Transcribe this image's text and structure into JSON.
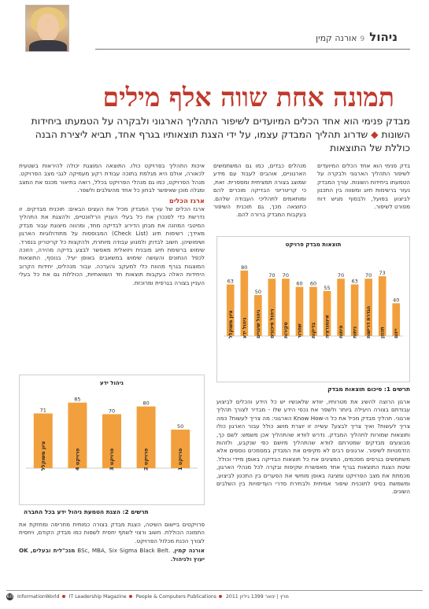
{
  "header": {
    "column_name": "ניהול",
    "column_number": "9",
    "author": "אורנה קמין"
  },
  "title": "תמונה אחת שווה אלף מילים",
  "lead": {
    "part1": "מבדק פנימי הוא אחד הכלים המיועדים לשיפור התהליך הארגוני ולבקרה על הטמעתו ביחידות השונות",
    "bullet": "◆",
    "part2": "שדרוג תהליך המבדק עצמו, על ידי הצגת תוצאותיו בגרף אחד, תביא ליצירת הבנה כוללת של התוצאות"
  },
  "text": {
    "top_right": "בדק פנימי הוא אחד הכלים המיועדים לשיפור התהליך הארגוני ולבקרה על הטמעתו ביחידות השונות. עורך המבדק נעזר ברשימות תיוג ומשווה בין התכנון לביצוע בפועל, ולבסוף מגיש דוח מפורט לשיפור.",
    "top_middle": "מנהלים כבדים, כמו גם המשתמשים הארגוניים, אוהבים לעבוד עם מידע שמוצג בצורה תמציתית ומספרית. זאת, כי קריטריוני הבדיקה מוכרים להם ומותאמים לתהליכי העבודה שלהם. כתוצאה מכך, גם תוכנית השיפור בעקבות המבדק ברורה להם.",
    "left_top": "איכות התהליך בפרויקט כולו. התוצאה המוצגת יכולה להיראות בשטעית לכאורה, אולם היא מגלמת בתוכה עבודת רקע מעמיקה לגבי מצב הפרויקט. מנהל הפרויקט, כמו גם מנהלי הפרויקט בכלל, רואה בתיאור מכנס את המצב ומגלה מוכן שאיפשר לבחון כל אחד מהשלבים ולשפר.",
    "left_heading": "ארגז הכלים",
    "left_body": "ארגז הכלים של עורך המבדק מכיל את העצים הבאים: תוכנית מבדקים. זו נדרשת כדי לסנכרן את כל בעלי העניין הרלוונטיים, ולהצגת את התהליך המיטבי המוזנה את מבחן הדירוג לבדיקה מחד, ומהווה מיצוגת עבור מבדק מאידך; רשימות תיוג (Check List) המבוססות על מתודולוגיות הארגון ושימושיהן. חשוב לבדוק ולמנוע עבודה מיותרת, ולהקצות כל קריטריון בנפרד. שימוש ברשימת תיוג מובנית ויזואלית מאפשר לבצע בדיקה מהירה, הזוכה לכפל הנתונים והעושה שימוש במשאבים באופן יעיל. בנוסף, התוצאות המוצגות בגרף מהוות כלי למעקב והערכה. עבור מנהלים, יחידות הקרוב היחידות האלה בעקבות תוצאות חד השוואתיות, הכוללות גם את כל בעלי העניין בצורה בגרפית ומרוכזת.",
    "right_body": "ארגון הרוצה להשיג את מטרותיו, יוודא שלאנשיו יש כל הידע והכלים לביצוע עבודתם בצורה היעילה ביותר ולשפר את נכסי הידע שלו - מבדיר לצורך תהליך ארגוני. תהליך מבדק מכיל את כל ה-Know How הארגוני: מה צריך לעשות? כמה צריך לעשות? ואיך צריך לבצע? עשייה זו יוצרת מושג כולל עבור הארגון כולו ותוצאות שמורות לתהליך המבדק. נדרש לוודא שהתהליך אכן משמש: לשם כך, מבוצעים מבדקים שמטרתם לוודא שהתהליך מיושם כפי שנקבע, ולזהות הזדמנויות לשיפור. ארגונים רבים לא מקיפים את המבדק במסמכים נוספים אלא משתמשים בגרפים מסכמים, המציגים את כל תוצאות הבדיקה באופן מיידי וכולל. שיטת הצגת התוצאות בגרף אחד מאפשרת שקיפות ובקרה לכל מנהלי הארגון, מכמתת את מצב הפרויקט ומציגה באופן מוחשי את הפערים בין התכנון לביצוע, ומשמשת בסיס לתוכנית שיפור אמיתית ולבחירת סדרי העדיפויות בין השלבים השונים."
  },
  "bio": {
    "prefix": "פרויקטים ביישום השיטה, הצגת מבדק בצורה כמותית מחריפה ומחזקת את התמונה הכוללת. חשוב ורצוי לשתף יחסית לשפות כמו מבדק הקודם, ויחסית לצורך הכנת מכלול הפרויקט.",
    "author_name": "אורנה קמין",
    "author_degrees": ".BSc, MBA, Six Sigma Black Belt",
    "author_role": "מנכ\"לית ובעלים,",
    "company": "OK יעוץ ולניהול."
  },
  "chart_data": [
    {
      "type": "bar",
      "title": "תוצאות מבדק פרויקט",
      "categories": [
        "ייזום",
        "תכנון",
        "הגדרת דרישות",
        "ניתוח",
        "פיתוח",
        "אינטגרציה",
        "בדיקות",
        "שחרור",
        "סקירות",
        "ניהול סיכונים",
        "ניהול שינויים",
        "ניהול ידע",
        "ציון משוקלל"
      ],
      "values": [
        40,
        73,
        70,
        63,
        70,
        55,
        60,
        60,
        70,
        70,
        50,
        80,
        63
      ],
      "ylim": [
        0,
        100
      ],
      "color": "#f2a03d",
      "caption": "תרשים 1: סיכום תוצאות מבדק"
    },
    {
      "type": "bar",
      "title": "ניהול ידע",
      "categories": [
        "פרויקט 1",
        "פרויקט 2",
        "פרויקט 3",
        "פרויקט 4",
        "ציון משוקלל"
      ],
      "values": [
        50,
        80,
        70,
        85,
        71
      ],
      "ylim": [
        0,
        100
      ],
      "color": "#f2a03d",
      "caption": "תרשים 2: הצגת הטמעת ניהול ידע בכל החברה"
    }
  ],
  "footer": {
    "page_number": "60",
    "items": [
      "InformationWorld",
      "IT Leadership Magazine",
      "People & Computers Publications",
      "2011 מרץ | ינואר 1399",
      "גיליון"
    ]
  },
  "colors": {
    "accent": "#c0392b",
    "bar": "#f2a03d"
  }
}
